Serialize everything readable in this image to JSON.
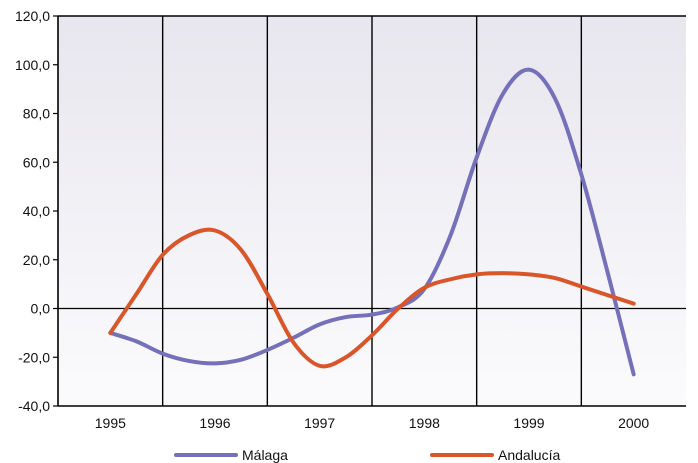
{
  "chart_data": {
    "type": "line",
    "categories": [
      "1995",
      "1996",
      "1997",
      "1998",
      "1999",
      "2000"
    ],
    "y_ticks": [
      "-40,0",
      "-20,0",
      "0,0",
      "20,0",
      "40,0",
      "60,0",
      "80,0",
      "100,0",
      "120,0"
    ],
    "ylim": [
      -40,
      120
    ],
    "grid": "vertical lines between years",
    "legend_position": "bottom",
    "series": [
      {
        "name": "Málaga",
        "color": "#7470b9",
        "points": [
          {
            "x": 1995.0,
            "y": -10.0
          },
          {
            "x": 1995.25,
            "y": -13.5
          },
          {
            "x": 1995.5,
            "y": -18.5
          },
          {
            "x": 1995.75,
            "y": -21.5
          },
          {
            "x": 1996.0,
            "y": -22.5
          },
          {
            "x": 1996.25,
            "y": -21.0
          },
          {
            "x": 1996.5,
            "y": -17.0
          },
          {
            "x": 1996.75,
            "y": -12.0
          },
          {
            "x": 1997.0,
            "y": -6.5
          },
          {
            "x": 1997.25,
            "y": -3.5
          },
          {
            "x": 1997.5,
            "y": -2.5
          },
          {
            "x": 1997.75,
            "y": 0.5
          },
          {
            "x": 1998.0,
            "y": 8.0
          },
          {
            "x": 1998.25,
            "y": 30.0
          },
          {
            "x": 1998.5,
            "y": 62.0
          },
          {
            "x": 1998.75,
            "y": 88.0
          },
          {
            "x": 1999.0,
            "y": 98.0
          },
          {
            "x": 1999.25,
            "y": 86.0
          },
          {
            "x": 1999.5,
            "y": 55.0
          },
          {
            "x": 1999.75,
            "y": 15.0
          },
          {
            "x": 2000.0,
            "y": -27.0
          }
        ]
      },
      {
        "name": "Andalucía",
        "color": "#d9552a",
        "points": [
          {
            "x": 1995.0,
            "y": -10.0
          },
          {
            "x": 1995.25,
            "y": 6.0
          },
          {
            "x": 1995.5,
            "y": 22.0
          },
          {
            "x": 1995.75,
            "y": 30.0
          },
          {
            "x": 1996.0,
            "y": 32.0
          },
          {
            "x": 1996.25,
            "y": 24.0
          },
          {
            "x": 1996.5,
            "y": 6.0
          },
          {
            "x": 1996.75,
            "y": -14.0
          },
          {
            "x": 1997.0,
            "y": -23.5
          },
          {
            "x": 1997.25,
            "y": -20.0
          },
          {
            "x": 1997.5,
            "y": -11.0
          },
          {
            "x": 1997.75,
            "y": 0.0
          },
          {
            "x": 1998.0,
            "y": 8.5
          },
          {
            "x": 1998.25,
            "y": 12.0
          },
          {
            "x": 1998.5,
            "y": 14.0
          },
          {
            "x": 1998.75,
            "y": 14.5
          },
          {
            "x": 1999.0,
            "y": 14.0
          },
          {
            "x": 1999.25,
            "y": 12.5
          },
          {
            "x": 1999.5,
            "y": 9.0
          },
          {
            "x": 1999.75,
            "y": 5.5
          },
          {
            "x": 2000.0,
            "y": 2.0
          }
        ]
      }
    ]
  }
}
